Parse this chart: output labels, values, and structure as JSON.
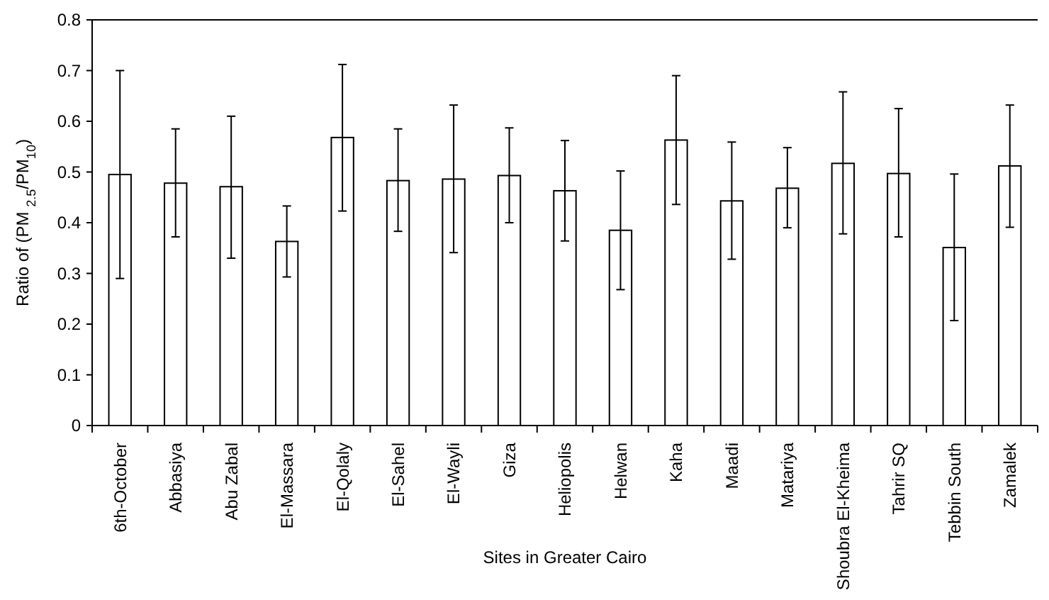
{
  "chart_data": {
    "type": "bar",
    "xlabel": "Sites in Greater Cairo",
    "ylabel": "Ratio of (PM $_{2.5}$/PM$_{10}$)",
    "categories": [
      "6th-October",
      "Abbasiya",
      "Abu Zabal",
      "El-Massara",
      "El-Qolaly",
      "El-Sahel",
      "El-Wayli",
      "Giza",
      "Heliopolis",
      "Helwan",
      "Kaha",
      "Maadi",
      "Matariya",
      "Shoubra El-Kheima",
      "Tahrir SQ",
      "Tebbin South",
      "Zamalek"
    ],
    "values": [
      0.495,
      0.478,
      0.471,
      0.363,
      0.568,
      0.483,
      0.486,
      0.493,
      0.463,
      0.385,
      0.563,
      0.443,
      0.468,
      0.517,
      0.497,
      0.351,
      0.512
    ],
    "errors": [
      [
        0.29,
        0.7
      ],
      [
        0.372,
        0.585
      ],
      [
        0.33,
        0.61
      ],
      [
        0.293,
        0.433
      ],
      [
        0.423,
        0.712
      ],
      [
        0.383,
        0.585
      ],
      [
        0.341,
        0.632
      ],
      [
        0.4,
        0.587
      ],
      [
        0.364,
        0.562
      ],
      [
        0.268,
        0.502
      ],
      [
        0.436,
        0.69
      ],
      [
        0.328,
        0.559
      ],
      [
        0.39,
        0.548
      ],
      [
        0.378,
        0.658
      ],
      [
        0.372,
        0.625
      ],
      [
        0.207,
        0.496
      ],
      [
        0.391,
        0.632
      ]
    ],
    "color": "#ffffff",
    "ylim": [
      0,
      0.8
    ],
    "yticks": [
      0,
      0.1,
      0.2,
      0.3,
      0.4,
      0.5,
      0.6,
      0.7,
      0.8
    ],
    "grid": false
  }
}
